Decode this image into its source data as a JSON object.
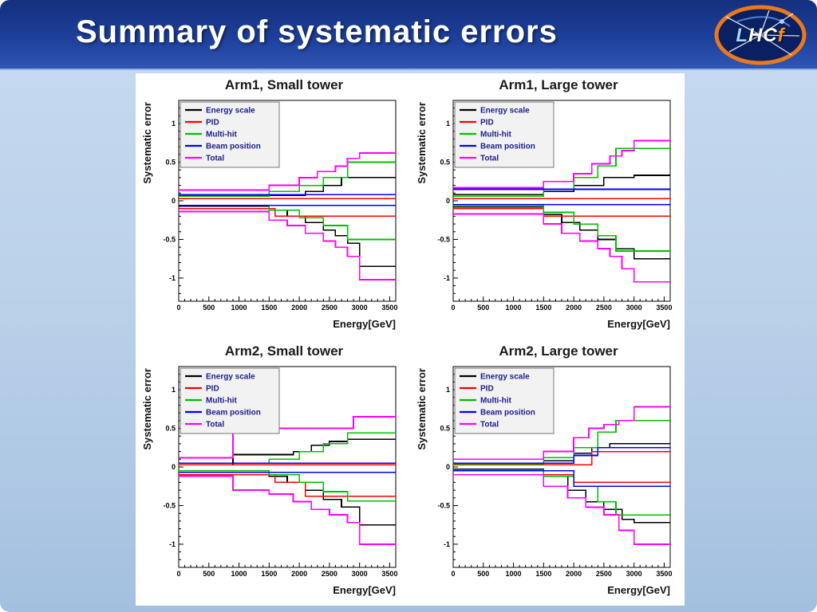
{
  "slide": {
    "title": "Summary of systematic errors",
    "header_color": "#1d3f9a",
    "logo": {
      "letters": [
        {
          "ch": "L",
          "color": "#9adcff"
        },
        {
          "ch": "H",
          "color": "#ffffff"
        },
        {
          "ch": "C",
          "color": "#ffffff"
        },
        {
          "ch": "f",
          "color": "#ff8c1a"
        }
      ]
    }
  },
  "chart_data": [
    {
      "type": "line",
      "title": "Arm1, Small tower",
      "xlabel": "Energy[GeV]",
      "ylabel": "Systematic error",
      "xlim": [
        0,
        3600
      ],
      "ylim": [
        -1.3,
        1.3
      ],
      "xticks": [
        0,
        500,
        1000,
        1500,
        2000,
        2500,
        3000,
        3500
      ],
      "yticks": [
        -1,
        -0.5,
        0,
        0.5,
        1
      ],
      "grid": false,
      "legend_position": "top-left",
      "series": [
        {
          "name": "Energy scale",
          "color": "#000000",
          "up": [
            [
              0,
              0.07
            ],
            [
              2100,
              0.12
            ],
            [
              2400,
              0.2
            ],
            [
              2700,
              0.3
            ]
          ],
          "dn": [
            [
              0,
              -0.07
            ],
            [
              1500,
              -0.12
            ],
            [
              1800,
              -0.2
            ],
            [
              2100,
              -0.28
            ],
            [
              2400,
              -0.38
            ],
            [
              2600,
              -0.45
            ],
            [
              2800,
              -0.55
            ],
            [
              3000,
              -0.85
            ]
          ]
        },
        {
          "name": "PID",
          "color": "#ff0000",
          "up": [
            [
              0,
              0.03
            ]
          ],
          "dn": [
            [
              0,
              -0.1
            ],
            [
              1600,
              -0.2
            ]
          ]
        },
        {
          "name": "Multi-hit",
          "color": "#00bf00",
          "up": [
            [
              0,
              0.06
            ],
            [
              1500,
              0.12
            ],
            [
              2000,
              0.2
            ],
            [
              2400,
              0.3
            ],
            [
              2800,
              0.5
            ]
          ],
          "dn": [
            [
              0,
              -0.06
            ],
            [
              1500,
              -0.12
            ],
            [
              2000,
              -0.22
            ],
            [
              2400,
              -0.32
            ],
            [
              2800,
              -0.5
            ]
          ]
        },
        {
          "name": "Beam position",
          "color": "#0000ff",
          "up": [
            [
              0,
              0.08
            ]
          ],
          "dn": [
            [
              0,
              -0.06
            ]
          ]
        },
        {
          "name": "Total",
          "color": "#ff00ff",
          "up": [
            [
              0,
              0.14
            ],
            [
              1500,
              0.2
            ],
            [
              2000,
              0.3
            ],
            [
              2300,
              0.38
            ],
            [
              2600,
              0.45
            ],
            [
              2800,
              0.55
            ],
            [
              3000,
              0.62
            ]
          ],
          "dn": [
            [
              0,
              -0.14
            ],
            [
              1500,
              -0.25
            ],
            [
              1800,
              -0.32
            ],
            [
              2100,
              -0.42
            ],
            [
              2400,
              -0.52
            ],
            [
              2600,
              -0.6
            ],
            [
              2800,
              -0.72
            ],
            [
              3000,
              -1.02
            ]
          ]
        }
      ]
    },
    {
      "type": "line",
      "title": "Arm1, Large tower",
      "xlabel": "Energy[GeV]",
      "ylabel": "Systematic error",
      "xlim": [
        0,
        3600
      ],
      "ylim": [
        -1.3,
        1.3
      ],
      "xticks": [
        0,
        500,
        1000,
        1500,
        2000,
        2500,
        3000,
        3500
      ],
      "yticks": [
        -1,
        -0.5,
        0,
        0.5,
        1
      ],
      "grid": false,
      "legend_position": "top-left",
      "series": [
        {
          "name": "Energy scale",
          "color": "#000000",
          "up": [
            [
              0,
              0.08
            ],
            [
              1500,
              0.12
            ],
            [
              2000,
              0.2
            ],
            [
              2500,
              0.3
            ],
            [
              3000,
              0.33
            ]
          ],
          "dn": [
            [
              0,
              -0.08
            ],
            [
              1500,
              -0.18
            ],
            [
              1800,
              -0.28
            ],
            [
              2100,
              -0.38
            ],
            [
              2400,
              -0.5
            ],
            [
              2700,
              -0.62
            ],
            [
              3000,
              -0.75
            ]
          ]
        },
        {
          "name": "PID",
          "color": "#ff0000",
          "up": [
            [
              0,
              0.03
            ]
          ],
          "dn": [
            [
              0,
              -0.1
            ],
            [
              1500,
              -0.2
            ]
          ]
        },
        {
          "name": "Multi-hit",
          "color": "#00bf00",
          "up": [
            [
              0,
              0.06
            ],
            [
              1500,
              0.15
            ],
            [
              2000,
              0.3
            ],
            [
              2400,
              0.45
            ],
            [
              2700,
              0.68
            ]
          ],
          "dn": [
            [
              0,
              -0.06
            ],
            [
              1500,
              -0.15
            ],
            [
              2000,
              -0.3
            ],
            [
              2400,
              -0.45
            ],
            [
              2700,
              -0.65
            ]
          ]
        },
        {
          "name": "Beam position",
          "color": "#0000ff",
          "up": [
            [
              0,
              0.15
            ]
          ],
          "dn": [
            [
              0,
              -0.05
            ]
          ]
        },
        {
          "name": "Total",
          "color": "#ff00ff",
          "up": [
            [
              0,
              0.17
            ],
            [
              1500,
              0.25
            ],
            [
              2000,
              0.35
            ],
            [
              2300,
              0.48
            ],
            [
              2600,
              0.58
            ],
            [
              2800,
              0.65
            ],
            [
              3000,
              0.78
            ]
          ],
          "dn": [
            [
              0,
              -0.17
            ],
            [
              1500,
              -0.3
            ],
            [
              1800,
              -0.42
            ],
            [
              2100,
              -0.52
            ],
            [
              2400,
              -0.62
            ],
            [
              2600,
              -0.72
            ],
            [
              2800,
              -0.88
            ],
            [
              3000,
              -1.05
            ]
          ]
        }
      ]
    },
    {
      "type": "line",
      "title": "Arm2, Small tower",
      "xlabel": "Energy[GeV]",
      "ylabel": "Systematic error",
      "xlim": [
        0,
        3600
      ],
      "ylim": [
        -1.3,
        1.3
      ],
      "xticks": [
        0,
        500,
        1000,
        1500,
        2000,
        2500,
        3000,
        3500
      ],
      "yticks": [
        -1,
        -0.5,
        0,
        0.5,
        1
      ],
      "grid": false,
      "legend_position": "top-left",
      "series": [
        {
          "name": "Energy scale",
          "color": "#000000",
          "up": [
            [
              0,
              0.03
            ],
            [
              900,
              0.16
            ],
            [
              1900,
              0.2
            ],
            [
              2200,
              0.28
            ],
            [
              2500,
              0.33
            ],
            [
              2800,
              0.36
            ]
          ],
          "dn": [
            [
              0,
              -0.05
            ],
            [
              1500,
              -0.12
            ],
            [
              1800,
              -0.2
            ],
            [
              2100,
              -0.3
            ],
            [
              2400,
              -0.42
            ],
            [
              2700,
              -0.52
            ],
            [
              3000,
              -0.75
            ]
          ]
        },
        {
          "name": "PID",
          "color": "#ff0000",
          "up": [
            [
              0,
              0.03
            ]
          ],
          "dn": [
            [
              0,
              -0.1
            ],
            [
              1600,
              -0.2
            ],
            [
              2100,
              -0.38
            ]
          ]
        },
        {
          "name": "Multi-hit",
          "color": "#00bf00",
          "up": [
            [
              0,
              0.05
            ],
            [
              1500,
              0.1
            ],
            [
              2000,
              0.2
            ],
            [
              2400,
              0.3
            ],
            [
              2800,
              0.44
            ]
          ],
          "dn": [
            [
              0,
              -0.05
            ],
            [
              1500,
              -0.1
            ],
            [
              2000,
              -0.2
            ],
            [
              2400,
              -0.32
            ],
            [
              2800,
              -0.44
            ]
          ]
        },
        {
          "name": "Beam position",
          "color": "#0000ff",
          "up": [
            [
              0,
              0.05
            ]
          ],
          "dn": [
            [
              0,
              -0.07
            ]
          ]
        },
        {
          "name": "Total",
          "color": "#ff00ff",
          "up": [
            [
              0,
              0.12
            ],
            [
              900,
              0.5
            ],
            [
              2900,
              0.65
            ]
          ],
          "dn": [
            [
              0,
              -0.12
            ],
            [
              900,
              -0.3
            ],
            [
              1500,
              -0.35
            ],
            [
              1900,
              -0.45
            ],
            [
              2200,
              -0.55
            ],
            [
              2500,
              -0.62
            ],
            [
              2800,
              -0.72
            ],
            [
              3000,
              -1.0
            ]
          ]
        }
      ]
    },
    {
      "type": "line",
      "title": "Arm2, Large tower",
      "xlabel": "Energy[GeV]",
      "ylabel": "Systematic error",
      "xlim": [
        0,
        3600
      ],
      "ylim": [
        -1.3,
        1.3
      ],
      "xticks": [
        0,
        500,
        1000,
        1500,
        2000,
        2500,
        3000,
        3500
      ],
      "yticks": [
        -1,
        -0.5,
        0,
        0.5,
        1
      ],
      "grid": false,
      "legend_position": "top-left",
      "series": [
        {
          "name": "Energy scale",
          "color": "#000000",
          "up": [
            [
              0,
              0.03
            ],
            [
              1500,
              0.08
            ],
            [
              2000,
              0.18
            ],
            [
              2300,
              0.25
            ],
            [
              2600,
              0.3
            ]
          ],
          "dn": [
            [
              0,
              -0.03
            ],
            [
              1500,
              -0.12
            ],
            [
              1900,
              -0.3
            ],
            [
              2200,
              -0.45
            ],
            [
              2500,
              -0.55
            ],
            [
              2800,
              -0.68
            ],
            [
              3000,
              -0.72
            ]
          ]
        },
        {
          "name": "PID",
          "color": "#ff0000",
          "up": [
            [
              0,
              0.03
            ],
            [
              2300,
              0.2
            ]
          ],
          "dn": [
            [
              0,
              -0.1
            ],
            [
              2000,
              -0.2
            ]
          ]
        },
        {
          "name": "Multi-hit",
          "color": "#00bf00",
          "up": [
            [
              0,
              0.04
            ],
            [
              1500,
              0.12
            ],
            [
              2000,
              0.25
            ],
            [
              2400,
              0.45
            ],
            [
              2700,
              0.6
            ]
          ],
          "dn": [
            [
              0,
              -0.04
            ],
            [
              1500,
              -0.12
            ],
            [
              2000,
              -0.25
            ],
            [
              2400,
              -0.45
            ],
            [
              2700,
              -0.62
            ]
          ]
        },
        {
          "name": "Beam position",
          "color": "#0000ff",
          "up": [
            [
              0,
              0.05
            ],
            [
              2000,
              0.15
            ],
            [
              2400,
              0.25
            ]
          ],
          "dn": [
            [
              0,
              -0.05
            ],
            [
              2000,
              -0.25
            ]
          ]
        },
        {
          "name": "Total",
          "color": "#ff00ff",
          "up": [
            [
              0,
              0.1
            ],
            [
              1500,
              0.2
            ],
            [
              2000,
              0.38
            ],
            [
              2250,
              0.5
            ],
            [
              2500,
              0.55
            ],
            [
              2750,
              0.6
            ],
            [
              3000,
              0.78
            ]
          ],
          "dn": [
            [
              0,
              -0.1
            ],
            [
              1500,
              -0.25
            ],
            [
              1900,
              -0.4
            ],
            [
              2200,
              -0.52
            ],
            [
              2500,
              -0.62
            ],
            [
              2750,
              -0.82
            ],
            [
              3000,
              -1.0
            ]
          ]
        }
      ]
    }
  ]
}
